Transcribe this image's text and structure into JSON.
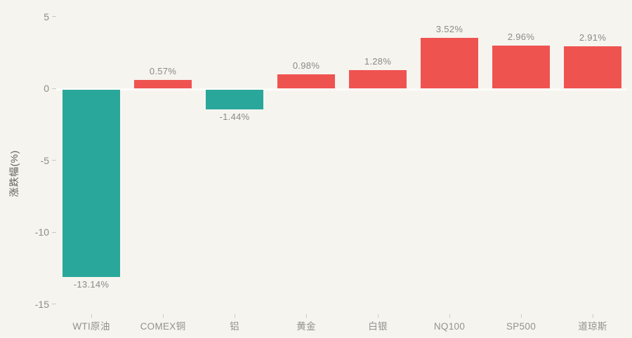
{
  "chart_data": {
    "type": "bar",
    "title": "",
    "xlabel": "",
    "ylabel": "涨跌幅(%)",
    "categories": [
      "WTI原油",
      "COMEX铜",
      "铝",
      "黄金",
      "白银",
      "NQ100",
      "SP500",
      "道琼斯"
    ],
    "values": [
      -13.14,
      0.57,
      -1.44,
      0.98,
      1.28,
      3.52,
      2.96,
      2.91
    ],
    "value_labels": [
      "-13.14%",
      "0.57%",
      "-1.44%",
      "0.98%",
      "1.28%",
      "3.52%",
      "2.96%",
      "2.91%"
    ],
    "yticks": [
      5,
      0,
      -5,
      -10,
      -15
    ],
    "ytick_labels": [
      "5",
      "0",
      "-5",
      "-10",
      "-15"
    ],
    "ylim": [
      -16,
      5.2
    ],
    "grid": false,
    "legend_position": "none",
    "colors": {
      "positive_bar": "#ef5350",
      "negative_bar": "#2aa79b",
      "background": "#f6f4ef",
      "tick_text": "#8e8c87",
      "value_label_text": "#8b8a86",
      "category_text": "#93918c",
      "axis_title_text": "#5f5e5a",
      "zero_line": "#fdfcf9",
      "tick_mark": "#cbc8c1"
    }
  }
}
